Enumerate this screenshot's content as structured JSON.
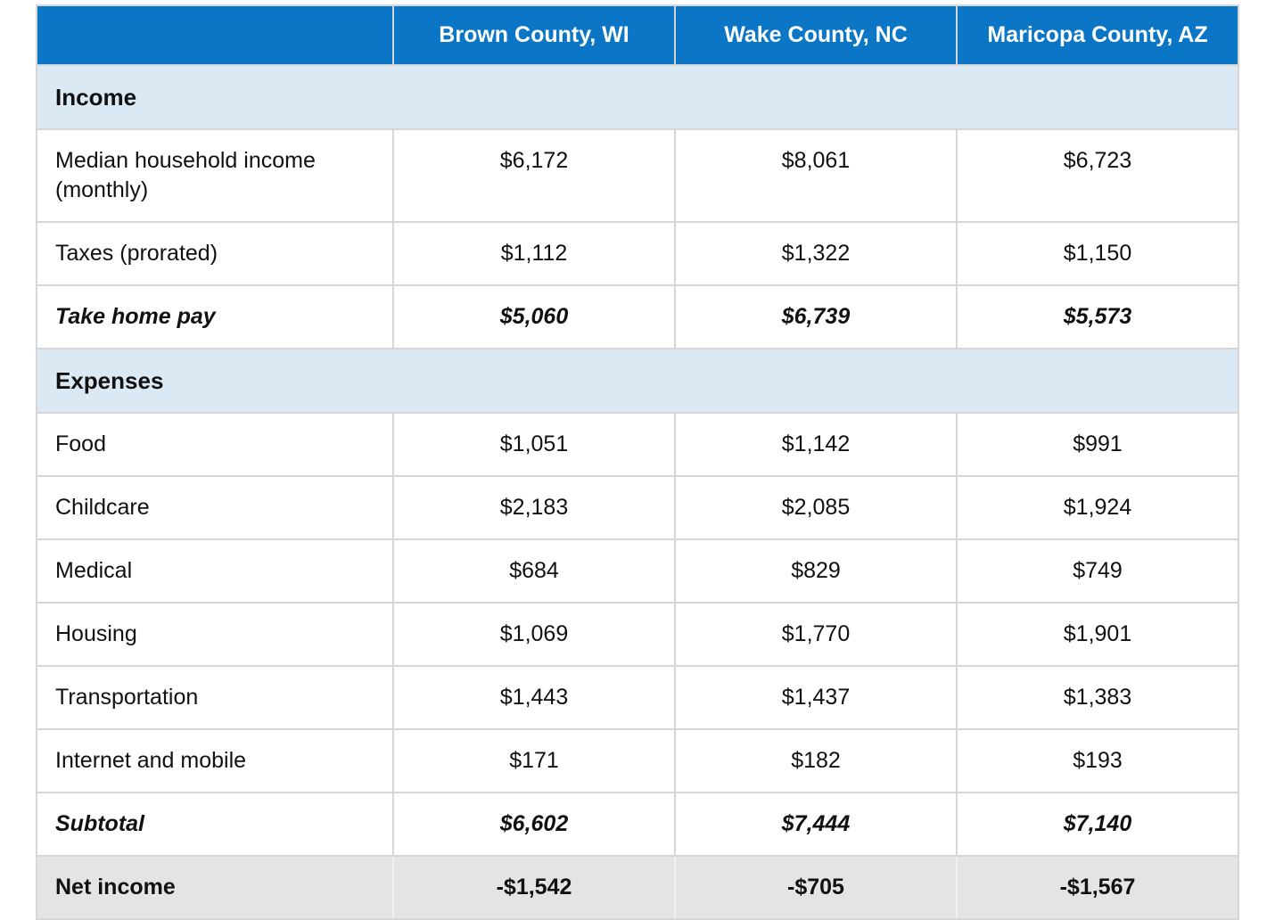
{
  "table": {
    "columns": [
      "",
      "Brown County, WI",
      "Wake County, NC",
      "Maricopa County, AZ"
    ],
    "sections": [
      {
        "title": "Income",
        "rows": [
          {
            "label": "Median household income (monthly)",
            "values": [
              "$6,172",
              "$8,061",
              "$6,723"
            ]
          },
          {
            "label": "Taxes (prorated)",
            "values": [
              "$1,112",
              "$1,322",
              "$1,150"
            ]
          },
          {
            "label": "Take home pay",
            "values": [
              "$5,060",
              "$6,739",
              "$5,573"
            ]
          }
        ]
      },
      {
        "title": "Expenses",
        "rows": [
          {
            "label": "Food",
            "values": [
              "$1,051",
              "$1,142",
              "$991"
            ]
          },
          {
            "label": "Childcare",
            "values": [
              "$2,183",
              "$2,085",
              "$1,924"
            ]
          },
          {
            "label": "Medical",
            "values": [
              "$684",
              "$829",
              "$749"
            ]
          },
          {
            "label": "Housing",
            "values": [
              "$1,069",
              "$1,770",
              "$1,901"
            ]
          },
          {
            "label": "Transportation",
            "values": [
              "$1,443",
              "$1,437",
              "$1,383"
            ]
          },
          {
            "label": "Internet and mobile",
            "values": [
              "$171",
              "$182",
              "$193"
            ]
          },
          {
            "label": "Subtotal",
            "values": [
              "$6,602",
              "$7,444",
              "$7,140"
            ]
          }
        ]
      }
    ],
    "footer": {
      "label": "Net income",
      "values": [
        "-$1,542",
        "-$705",
        "-$1,567"
      ]
    }
  },
  "chart_data": {
    "type": "table",
    "title": "",
    "categories": [
      "Brown County, WI",
      "Wake County, NC",
      "Maricopa County, AZ"
    ],
    "row_labels": [
      "Median household income (monthly)",
      "Taxes (prorated)",
      "Take home pay",
      "Food",
      "Childcare",
      "Medical",
      "Housing",
      "Transportation",
      "Internet and mobile",
      "Subtotal",
      "Net income"
    ],
    "series": [
      {
        "name": "Brown County, WI",
        "values": [
          6172,
          1112,
          5060,
          1051,
          2183,
          684,
          1069,
          1443,
          171,
          6602,
          -1542
        ]
      },
      {
        "name": "Wake County, NC",
        "values": [
          8061,
          1322,
          6739,
          1142,
          2085,
          829,
          1770,
          1437,
          182,
          7444,
          -705
        ]
      },
      {
        "name": "Maricopa County, AZ",
        "values": [
          6723,
          1150,
          5573,
          991,
          1924,
          749,
          1901,
          1383,
          193,
          7140,
          -1567
        ]
      }
    ],
    "section_breaks": {
      "Income": [
        "Median household income (monthly)",
        "Taxes (prorated)",
        "Take home pay"
      ],
      "Expenses": [
        "Food",
        "Childcare",
        "Medical",
        "Housing",
        "Transportation",
        "Internet and mobile",
        "Subtotal"
      ]
    }
  },
  "colors": {
    "header_bg": "#0b76c5",
    "header_text": "#ffffff",
    "section_bg": "#dbe9f4",
    "footer_bg": "#e4e4e4",
    "border": "#d6d6d6",
    "text": "#111111"
  }
}
